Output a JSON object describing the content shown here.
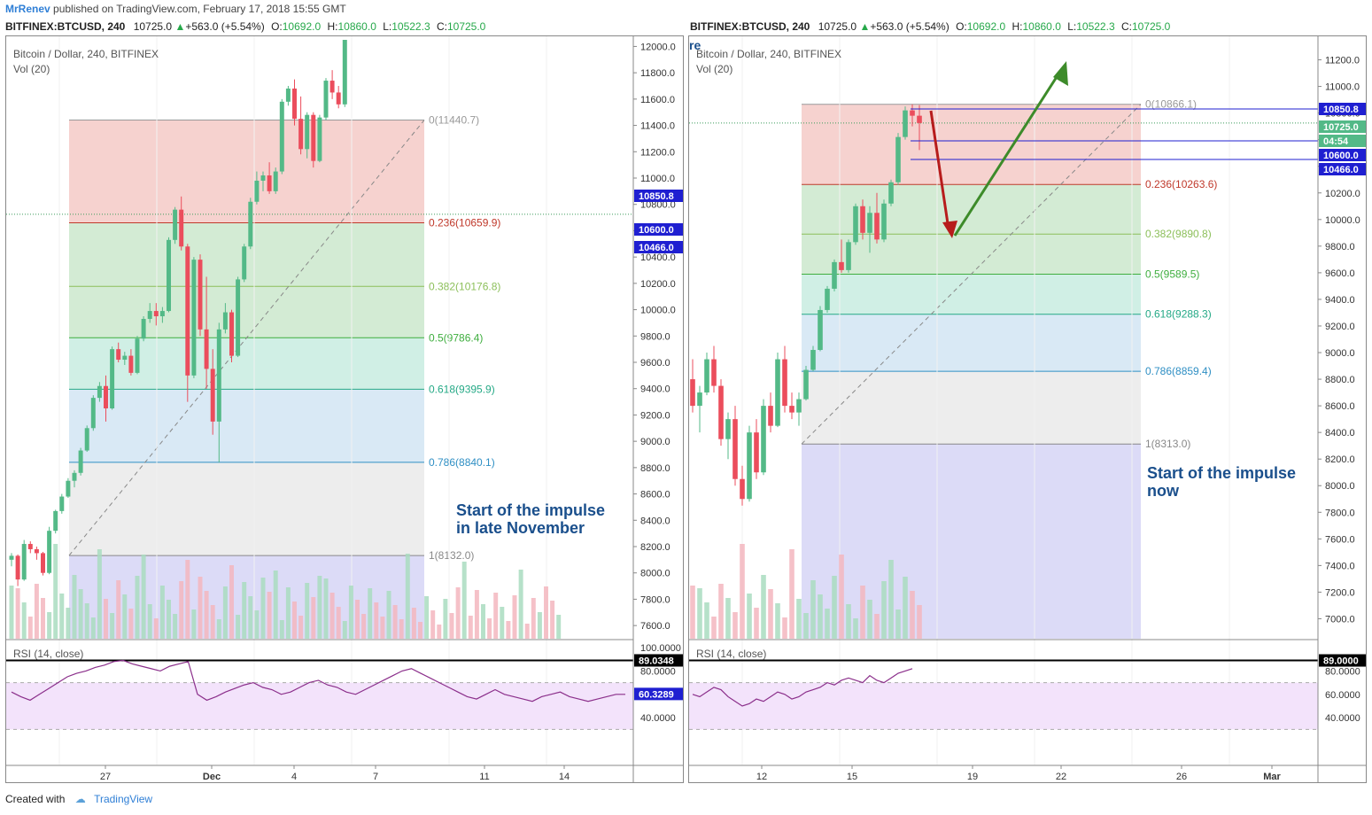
{
  "header": {
    "author": "MrRenev",
    "published_text": "published on TradingView.com, February 17, 2018 15:55 GMT"
  },
  "footer": {
    "created_with": "Created with",
    "brand": "TradingView"
  },
  "colors": {
    "up": "#53b987",
    "down": "#eb4d5c",
    "fib_red": "#f4c7c3",
    "fib_green": "#c8e6c9",
    "fib_teal": "#c4ebde",
    "fib_blue": "#cfe4f3",
    "fib_gray": "#e8e8e8",
    "fib_purple": "#d3d2f5",
    "rsi_line": "#8b2f8b",
    "rsi_band": "#f3e3fb",
    "annotation": "#1a4f8c",
    "arrow_down": "#b71c1c",
    "arrow_up": "#3d8b2a",
    "price_tag": "#1f1fd1"
  },
  "charts": {
    "left": {
      "ohlc": {
        "symbol": "BITFINEX:BTCUSD, 240",
        "close_val": "10725.0",
        "change": "+563.0 (+5.54%)",
        "o_label": "O:",
        "o": "10692.0",
        "h_label": "H:",
        "h": "10860.0",
        "l_label": "L:",
        "l": "10522.3",
        "c_label": "C:",
        "c": "10725.0"
      },
      "legend": "Bitcoin / Dollar, 240, BITFINEX",
      "vol_label": "Vol (20)",
      "rsi_label": "RSI (14, close)",
      "annotation_line1": "Start of the impulse",
      "annotation_line2": "in late November",
      "y_ticks": [
        "12000.0",
        "11800.0",
        "11600.0",
        "11400.0",
        "11200.0",
        "11000.0",
        "10800.0",
        "10600.0",
        "10400.0",
        "10200.0",
        "10000.0",
        "9800.0",
        "9600.0",
        "9400.0",
        "9200.0",
        "9000.0",
        "8800.0",
        "8600.0",
        "8400.0",
        "8200.0",
        "8000.0",
        "7800.0",
        "7600.0"
      ],
      "price_tags": [
        "10850.8",
        "10600.0",
        "10466.0"
      ],
      "x_ticks": [
        "27",
        "Dec",
        "4",
        "7",
        "11",
        "14"
      ],
      "rsi_ticks": [
        "100.0000",
        "80.0000",
        "60.0000",
        "40.0000"
      ],
      "rsi_tags": [
        "89.0348",
        "60.3289"
      ],
      "fib_labels": [
        "0(11440.7)",
        "0.236(10659.9)",
        "0.382(10176.8)",
        "0.5(9786.4)",
        "0.618(9395.9)",
        "0.786(8840.1)",
        "1(8132.0)"
      ]
    },
    "right": {
      "ohlc": {
        "symbol": "BITFINEX:BTCUSD, 240",
        "close_val": "10725.0",
        "change": "+563.0 (+5.54%)",
        "o_label": "O:",
        "o": "10692.0",
        "h_label": "H:",
        "h": "10860.0",
        "l_label": "L:",
        "l": "10522.3",
        "c_label": "C:",
        "c": "10725.0"
      },
      "legend": "Bitcoin / Dollar, 240, BITFINEX",
      "legend_prefix": "re",
      "vol_label": "Vol (20)",
      "rsi_label": "RSI (14, close)",
      "annotation_line1": "Start of the impulse",
      "annotation_line2": "now",
      "y_ticks": [
        "11200.0",
        "11000.0",
        "10800.0",
        "10600.0",
        "10400.0",
        "10200.0",
        "10000.0",
        "9800.0",
        "9600.0",
        "9400.0",
        "9200.0",
        "9000.0",
        "8800.0",
        "8600.0",
        "8400.0",
        "8200.0",
        "8000.0",
        "7800.0",
        "7600.0",
        "7400.0",
        "7200.0",
        "7000.0"
      ],
      "price_tags": [
        "10850.8",
        "10725.0",
        "04:54",
        "10600.0",
        "10466.0"
      ],
      "x_ticks": [
        "12",
        "15",
        "19",
        "22",
        "26",
        "Mar"
      ],
      "rsi_ticks": [
        "80.0000",
        "60.0000",
        "40.0000"
      ],
      "rsi_tags": [
        "89.0000"
      ],
      "fib_labels": [
        "0(10866.1)",
        "0.236(10263.6)",
        "0.382(9890.8)",
        "0.5(9589.5)",
        "0.618(9288.3)",
        "0.786(8859.4)",
        "1(8313.0)"
      ]
    }
  },
  "chart_data": [
    {
      "type": "candlestick",
      "title": "Bitcoin / Dollar, 240, BITFINEX",
      "ylim": [
        7500,
        12050
      ],
      "candles": [
        [
          8100,
          8150,
          8050,
          8130
        ],
        [
          8130,
          8140,
          7900,
          7950
        ],
        [
          7950,
          8250,
          7940,
          8220
        ],
        [
          8220,
          8240,
          8150,
          8180
        ],
        [
          8180,
          8200,
          8100,
          8150
        ],
        [
          8150,
          8160,
          7980,
          8000
        ],
        [
          8000,
          8350,
          7990,
          8320
        ],
        [
          8320,
          8480,
          8300,
          8470
        ],
        [
          8470,
          8600,
          8450,
          8580
        ],
        [
          8580,
          8720,
          8570,
          8700
        ],
        [
          8700,
          8780,
          8650,
          8760
        ],
        [
          8760,
          8950,
          8740,
          8930
        ],
        [
          8930,
          9120,
          8920,
          9100
        ],
        [
          9100,
          9350,
          9080,
          9330
        ],
        [
          9330,
          9450,
          9300,
          9420
        ],
        [
          9420,
          9500,
          9150,
          9250
        ],
        [
          9250,
          9720,
          9240,
          9700
        ],
        [
          9700,
          9750,
          9600,
          9620
        ],
        [
          9620,
          9680,
          9580,
          9650
        ],
        [
          9650,
          9700,
          9500,
          9520
        ],
        [
          9520,
          9800,
          9510,
          9780
        ],
        [
          9780,
          9950,
          9760,
          9930
        ],
        [
          9930,
          10050,
          9900,
          9990
        ],
        [
          9990,
          10050,
          9880,
          9950
        ],
        [
          9950,
          10020,
          9900,
          9990
        ],
        [
          9990,
          10550,
          9980,
          10530
        ],
        [
          10530,
          10780,
          10500,
          10760
        ],
        [
          10760,
          10860,
          10450,
          10480
        ],
        [
          10480,
          10500,
          9300,
          9500
        ],
        [
          9500,
          10400,
          9480,
          10380
        ],
        [
          10380,
          10420,
          9800,
          9850
        ],
        [
          9850,
          10250,
          9400,
          9550
        ],
        [
          9550,
          9700,
          9050,
          9150
        ],
        [
          9150,
          9900,
          8840,
          9850
        ],
        [
          9850,
          10050,
          9820,
          9980
        ],
        [
          9980,
          10000,
          9600,
          9650
        ],
        [
          9650,
          10250,
          9640,
          10230
        ],
        [
          10230,
          10500,
          10210,
          10480
        ],
        [
          10480,
          10850,
          10460,
          10820
        ],
        [
          10820,
          11050,
          10800,
          10980
        ],
        [
          10980,
          11050,
          10900,
          11020
        ],
        [
          11020,
          11120,
          10880,
          10900
        ],
        [
          10900,
          11080,
          10880,
          11050
        ],
        [
          11050,
          11600,
          11030,
          11580
        ],
        [
          11580,
          11700,
          11550,
          11680
        ],
        [
          11680,
          11750,
          11400,
          11450
        ],
        [
          11450,
          11620,
          11180,
          11220
        ],
        [
          11220,
          11500,
          11150,
          11480
        ],
        [
          11480,
          11500,
          11080,
          11130
        ],
        [
          11130,
          11480,
          11120,
          11460
        ],
        [
          11460,
          11760,
          11440,
          11740
        ],
        [
          11740,
          11820,
          11600,
          11650
        ],
        [
          11650,
          11700,
          11530,
          11560
        ],
        [
          11560,
          12050,
          11540,
          12050
        ]
      ],
      "volume_ma": "orange line",
      "rsi": [
        62,
        58,
        55,
        60,
        65,
        70,
        75,
        78,
        80,
        83,
        85,
        88,
        89,
        86,
        84,
        82,
        80,
        84,
        86,
        88,
        60,
        55,
        58,
        62,
        65,
        68,
        70,
        66,
        64,
        60,
        62,
        66,
        70,
        72,
        68,
        66,
        62,
        60,
        64,
        68,
        72,
        76,
        80,
        82,
        78,
        74,
        70,
        66,
        62,
        58,
        56,
        60,
        64,
        60,
        58,
        56,
        54,
        58,
        60,
        62,
        58,
        56,
        54,
        56,
        58,
        60,
        60
      ]
    },
    {
      "type": "candlestick",
      "title": "Bitcoin / Dollar, 240, BITFINEX",
      "ylim": [
        6850,
        11350
      ],
      "candles": [
        [
          8800,
          8950,
          8550,
          8600
        ],
        [
          8600,
          8750,
          8400,
          8700
        ],
        [
          8700,
          9000,
          8680,
          8950
        ],
        [
          8950,
          9050,
          8700,
          8750
        ],
        [
          8750,
          8800,
          8300,
          8350
        ],
        [
          8350,
          8550,
          8200,
          8500
        ],
        [
          8500,
          8600,
          8000,
          8050
        ],
        [
          8050,
          8150,
          7850,
          7900
        ],
        [
          7900,
          8450,
          7880,
          8400
        ],
        [
          8400,
          8500,
          8050,
          8100
        ],
        [
          8100,
          8650,
          8080,
          8600
        ],
        [
          8600,
          8700,
          8400,
          8450
        ],
        [
          8450,
          9000,
          8440,
          8950
        ],
        [
          8950,
          9050,
          8550,
          8600
        ],
        [
          8600,
          8700,
          8500,
          8550
        ],
        [
          8550,
          8700,
          8450,
          8650
        ],
        [
          8650,
          8900,
          8640,
          8870
        ],
        [
          8870,
          9050,
          8860,
          9020
        ],
        [
          9020,
          9350,
          9010,
          9320
        ],
        [
          9320,
          9500,
          9300,
          9480
        ],
        [
          9480,
          9700,
          9460,
          9680
        ],
        [
          9680,
          9850,
          9600,
          9620
        ],
        [
          9620,
          9850,
          9600,
          9830
        ],
        [
          9830,
          10120,
          9810,
          10100
        ],
        [
          10100,
          10150,
          9850,
          9900
        ],
        [
          9900,
          10100,
          9750,
          10050
        ],
        [
          10050,
          10200,
          9820,
          9850
        ],
        [
          9850,
          10150,
          9830,
          10120
        ],
        [
          10120,
          10300,
          10100,
          10280
        ],
        [
          10280,
          10650,
          10260,
          10620
        ],
        [
          10620,
          10850,
          10600,
          10820
        ],
        [
          10820,
          10866,
          10700,
          10780
        ],
        [
          10780,
          10860,
          10522,
          10725
        ]
      ],
      "fib_projection": {
        "start": 8313.0,
        "end": 10866.1
      },
      "rsi": [
        60,
        58,
        62,
        66,
        64,
        58,
        54,
        50,
        52,
        56,
        54,
        58,
        62,
        60,
        56,
        58,
        62,
        64,
        66,
        70,
        68,
        72,
        74,
        72,
        70,
        76,
        72,
        70,
        74,
        78,
        80,
        82
      ]
    }
  ]
}
